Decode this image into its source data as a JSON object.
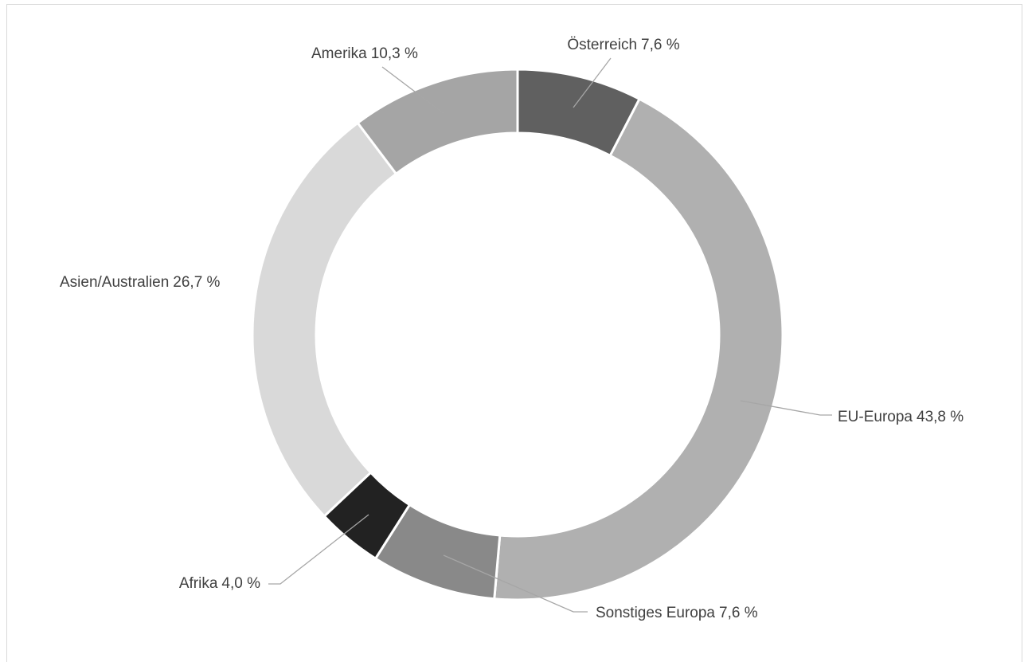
{
  "chart_data": {
    "type": "donut",
    "categories": [
      "Österreich",
      "EU-Europa",
      "Sonstiges Europa",
      "Afrika",
      "Asien/Australien",
      "Amerika"
    ],
    "values": [
      7.6,
      43.8,
      7.6,
      4.0,
      26.7,
      10.3
    ],
    "value_labels": [
      "7,6 %",
      "43,8 %",
      "7,6 %",
      "4,0 %",
      "26,7 %",
      "10,3 %"
    ],
    "colors": [
      "#606060",
      "#b0b0b0",
      "#898989",
      "#222222",
      "#d9d9d9",
      "#a5a5a5"
    ]
  }
}
